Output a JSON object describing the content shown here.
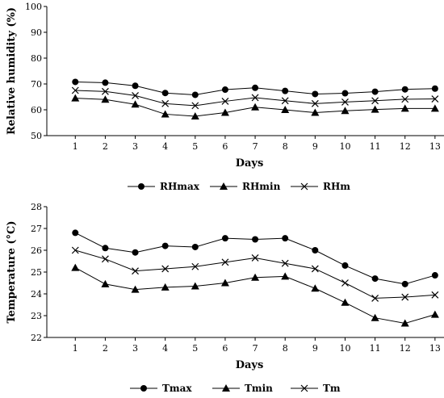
{
  "chart_data": [
    {
      "type": "line",
      "xlabel": "Days",
      "ylabel": "Relative humidity (%)",
      "x": [
        1,
        2,
        3,
        4,
        5,
        6,
        7,
        8,
        9,
        10,
        11,
        12,
        13
      ],
      "ylim": [
        50,
        100
      ],
      "yticks": [
        50,
        60,
        70,
        80,
        90,
        100
      ],
      "grid": false,
      "legend_position": "bottom",
      "series": [
        {
          "name": "RHmax",
          "marker": "circle",
          "values": [
            70.8,
            70.5,
            69.3,
            66.5,
            65.8,
            67.8,
            68.5,
            67.3,
            66.1,
            66.4,
            67.0,
            67.9,
            68.2
          ]
        },
        {
          "name": "RHmin",
          "marker": "triangle",
          "values": [
            64.5,
            64.0,
            62.1,
            58.3,
            57.5,
            58.9,
            61.0,
            60.0,
            58.9,
            59.6,
            60.1,
            60.5,
            60.5
          ]
        },
        {
          "name": "RHm",
          "marker": "x",
          "values": [
            67.5,
            67.1,
            65.5,
            62.4,
            61.6,
            63.3,
            64.7,
            63.5,
            62.4,
            63.0,
            63.5,
            64.1,
            64.2
          ]
        }
      ]
    },
    {
      "type": "line",
      "xlabel": "Days",
      "ylabel": "Temperature (°C)",
      "x": [
        1,
        2,
        3,
        4,
        5,
        6,
        7,
        8,
        9,
        10,
        11,
        12,
        13
      ],
      "ylim": [
        22,
        28
      ],
      "yticks": [
        22,
        23,
        24,
        25,
        26,
        27,
        28
      ],
      "grid": false,
      "legend_position": "bottom",
      "series": [
        {
          "name": "Tmax",
          "marker": "circle",
          "values": [
            26.8,
            26.1,
            25.9,
            26.2,
            26.15,
            26.55,
            26.5,
            26.55,
            26.0,
            25.3,
            24.7,
            24.45,
            24.85
          ]
        },
        {
          "name": "Tmin",
          "marker": "triangle",
          "values": [
            25.2,
            24.45,
            24.2,
            24.3,
            24.35,
            24.5,
            24.75,
            24.8,
            24.25,
            23.6,
            22.9,
            22.65,
            23.05
          ]
        },
        {
          "name": "Tm",
          "marker": "x",
          "values": [
            26.0,
            25.6,
            25.05,
            25.15,
            25.25,
            25.45,
            25.65,
            25.4,
            25.15,
            24.5,
            23.8,
            23.85,
            23.95
          ]
        }
      ]
    }
  ]
}
